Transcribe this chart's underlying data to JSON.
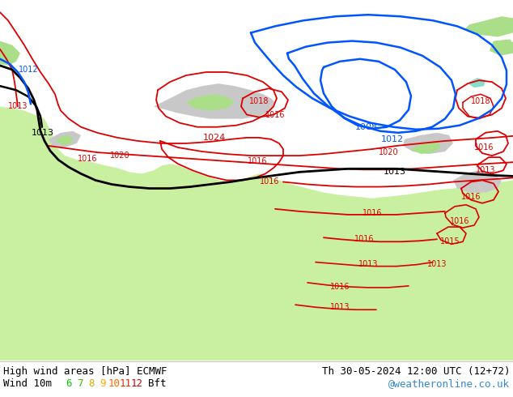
{
  "title_left": "High wind areas [hPa] ECMWF",
  "title_right": "Th 30-05-2024 12:00 UTC (12+72)",
  "subtitle_left": "Wind 10m",
  "subtitle_right": "@weatheronline.co.uk",
  "wind_legend": [
    "6",
    "7",
    "8",
    "9",
    "10",
    "11",
    "12"
  ],
  "wind_legend_colors": [
    "#00cc00",
    "#44bb00",
    "#ddaa00",
    "#ffaa00",
    "#ff6600",
    "#ff2200",
    "#cc0000"
  ],
  "wind_bft_label": "Bft",
  "bg_color": "#ffffff",
  "map_bg_gray": "#c8c8c8",
  "map_bg_green": "#aade88",
  "map_bg_green2": "#c8f0a0",
  "contour_red": "#dd0000",
  "contour_black": "#000000",
  "contour_blue": "#0055ff",
  "footer_color": "#000000",
  "footer_right_color": "#3388cc",
  "label_fontsize": 7,
  "footer_fontsize": 9
}
